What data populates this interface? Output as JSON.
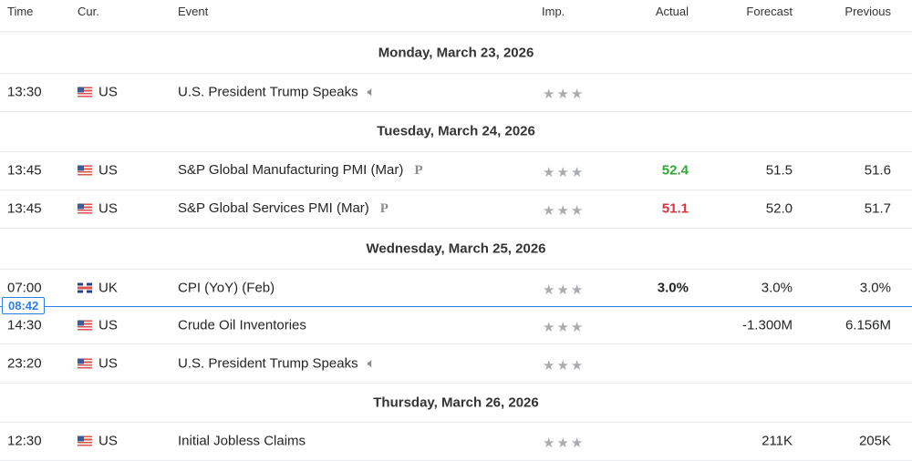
{
  "header": {
    "time": "Time",
    "currency": "Cur.",
    "event": "Event",
    "importance": "Imp.",
    "actual": "Actual",
    "forecast": "Forecast",
    "previous": "Previous"
  },
  "colors": {
    "positive": "#2daa32",
    "negative": "#e0323c",
    "now_line": "#2f7ee6"
  },
  "current_time": "08:42",
  "days": [
    {
      "date": "Monday, March 23, 2026",
      "events": [
        {
          "time": "13:30",
          "flag": "us-flag",
          "currency": "US",
          "event": "U.S. President Trump Speaks",
          "badge_icon": "speaker-icon",
          "importance_stars": 3,
          "actual": "",
          "forecast": "",
          "previous": ""
        }
      ]
    },
    {
      "date": "Tuesday, March 24, 2026",
      "events": [
        {
          "time": "13:45",
          "flag": "us-flag",
          "currency": "US",
          "event": "S&P Global Manufacturing PMI (Mar)",
          "badge": "P",
          "importance_stars": 3,
          "actual": "52.4",
          "actual_color": "positive",
          "forecast": "51.5",
          "previous": "51.6"
        },
        {
          "time": "13:45",
          "flag": "us-flag",
          "currency": "US",
          "event": "S&P Global Services PMI (Mar)",
          "badge": "P",
          "importance_stars": 3,
          "actual": "51.1",
          "actual_color": "negative",
          "forecast": "52.0",
          "previous": "51.7"
        }
      ]
    },
    {
      "date": "Wednesday, March 25, 2026",
      "events": [
        {
          "time": "07:00",
          "flag": "uk-flag",
          "currency": "UK",
          "event": "CPI (YoY) (Feb)",
          "importance_stars": 3,
          "actual": "3.0%",
          "actual_color": "neutral",
          "forecast": "3.0%",
          "previous": "3.0%"
        },
        {
          "time": "14:30",
          "flag": "us-flag",
          "currency": "US",
          "event": "Crude Oil Inventories",
          "importance_stars": 3,
          "actual": "",
          "forecast": "-1.300M",
          "previous": "6.156M"
        },
        {
          "time": "23:20",
          "flag": "us-flag",
          "currency": "US",
          "event": "U.S. President Trump Speaks",
          "badge_icon": "speaker-icon",
          "importance_stars": 3,
          "actual": "",
          "forecast": "",
          "previous": ""
        }
      ]
    },
    {
      "date": "Thursday, March 26, 2026",
      "events": [
        {
          "time": "12:30",
          "flag": "us-flag",
          "currency": "US",
          "event": "Initial Jobless Claims",
          "importance_stars": 3,
          "actual": "",
          "forecast": "211K",
          "previous": "205K"
        }
      ]
    }
  ]
}
